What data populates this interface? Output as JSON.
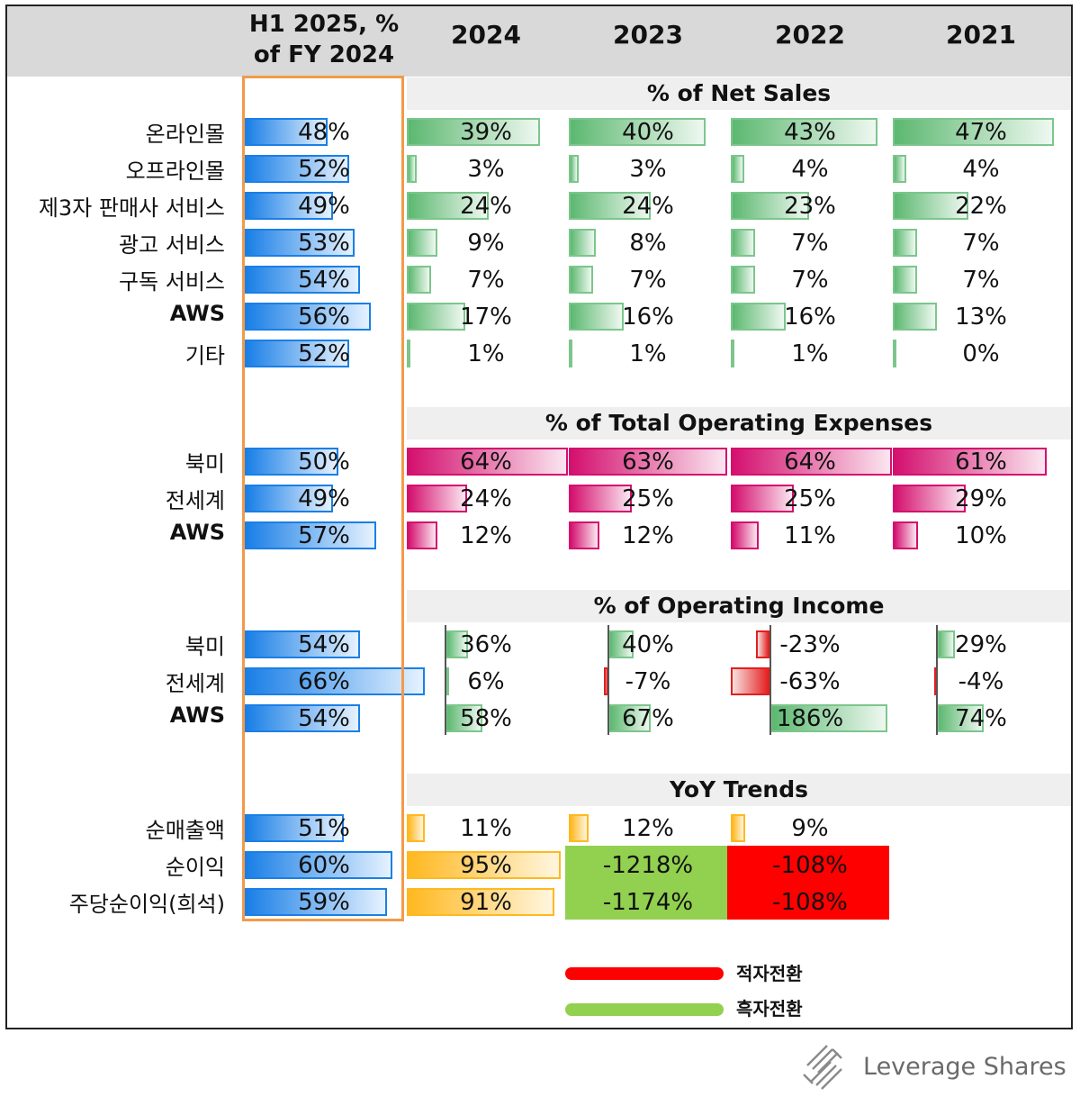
{
  "header": {
    "h1_line1": "H1 2025, %",
    "h1_line2": "of FY 2024",
    "years": [
      "2024",
      "2023",
      "2022",
      "2021"
    ]
  },
  "chart_data": {
    "type": "table",
    "columns": [
      "H1 2025, % of FY 2024",
      "2024",
      "2023",
      "2022",
      "2021"
    ],
    "sections": [
      {
        "title": "% of Net Sales",
        "rows": [
          {
            "label": "온라인몰",
            "h1": 48,
            "values": [
              39,
              40,
              43,
              47
            ]
          },
          {
            "label": "오프라인몰",
            "h1": 52,
            "values": [
              3,
              3,
              4,
              4
            ]
          },
          {
            "label": "제3자 판매사 서비스",
            "h1": 49,
            "values": [
              24,
              24,
              23,
              22
            ]
          },
          {
            "label": "광고 서비스",
            "h1": 53,
            "values": [
              9,
              8,
              7,
              7
            ]
          },
          {
            "label": "구독 서비스",
            "h1": 54,
            "values": [
              7,
              7,
              7,
              7
            ]
          },
          {
            "label": "AWS",
            "h1": 56,
            "values": [
              17,
              16,
              16,
              13
            ]
          },
          {
            "label": "기타",
            "h1": 52,
            "values": [
              1,
              1,
              1,
              0
            ]
          }
        ]
      },
      {
        "title": "% of Total Operating Expenses",
        "rows": [
          {
            "label": "북미",
            "h1": 50,
            "values": [
              64,
              63,
              64,
              61
            ]
          },
          {
            "label": "전세계",
            "h1": 49,
            "values": [
              24,
              25,
              25,
              29
            ]
          },
          {
            "label": "AWS",
            "h1": 57,
            "values": [
              12,
              12,
              11,
              10
            ]
          }
        ]
      },
      {
        "title": "% of Operating Income",
        "rows": [
          {
            "label": "북미",
            "h1": 54,
            "values": [
              36,
              40,
              -23,
              29
            ]
          },
          {
            "label": "전세계",
            "h1": 66,
            "values": [
              6,
              -7,
              -63,
              -4
            ]
          },
          {
            "label": "AWS",
            "h1": 54,
            "values": [
              58,
              67,
              186,
              74
            ]
          }
        ]
      },
      {
        "title": "YoY Trends",
        "rows": [
          {
            "label": "순매출액",
            "h1": 51,
            "values": [
              11,
              12,
              9,
              null
            ]
          },
          {
            "label": "순이익",
            "h1": 60,
            "values": [
              95,
              -1218,
              -108,
              null
            ]
          },
          {
            "label": "주당순이익(희석)",
            "h1": 59,
            "values": [
              91,
              -1174,
              -108,
              null
            ]
          }
        ]
      }
    ],
    "legend": [
      {
        "label": "적자전환",
        "color": "#ff0000"
      },
      {
        "label": "흑자전환",
        "color": "#92d050"
      }
    ]
  },
  "brand": {
    "name": "Leverage Shares"
  }
}
